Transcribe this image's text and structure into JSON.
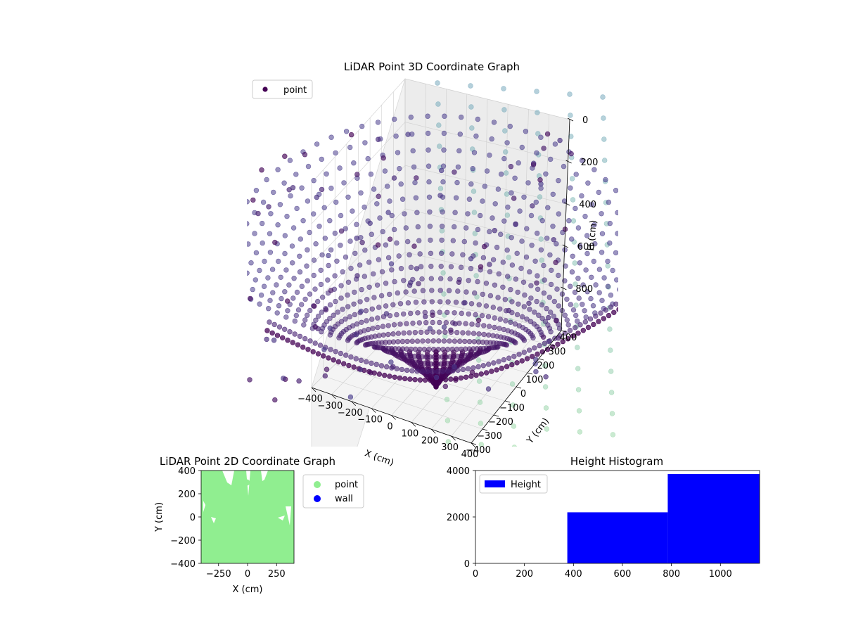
{
  "chart_data": [
    {
      "type": "scatter",
      "projection": "3d",
      "title": "LiDAR Point 3D Coordinate Graph",
      "xlabel": "X (cm)",
      "ylabel": "Y (cm)",
      "zlabel": "H (cm)",
      "x_ticks": [
        "−400",
        "−300",
        "−200",
        "−100",
        "0",
        "100",
        "200",
        "300",
        "400"
      ],
      "y_ticks": [
        "−400",
        "−300",
        "−200",
        "−100",
        "0",
        "100",
        "200",
        "300",
        "400"
      ],
      "z_ticks": [
        "0",
        "200",
        "400",
        "600",
        "800"
      ],
      "xlim": [
        -400,
        400
      ],
      "ylim": [
        -400,
        400
      ],
      "zlim": [
        0,
        1000
      ],
      "z_axis_inverted": true,
      "legend": {
        "placement": "upper-left",
        "entries": [
          "point"
        ]
      },
      "colormap": "viridis",
      "marker_color": "#440154",
      "grid": true,
      "shape": "bowl of radial scan lines converging at the sensor near the center; sparse outliers throughout"
    },
    {
      "type": "scatter",
      "title": "LiDAR Point 2D Coordinate Graph",
      "xlabel": "X (cm)",
      "ylabel": "Y (cm)",
      "x_ticks": [
        -250,
        0,
        250
      ],
      "y_ticks": [
        -400,
        -200,
        0,
        200,
        400
      ],
      "xlim": [
        -400,
        400
      ],
      "ylim": [
        -400,
        400
      ],
      "series": [
        {
          "name": "point",
          "color": "#90ee90"
        },
        {
          "name": "wall",
          "color": "#0000ff"
        }
      ],
      "legend": {
        "placement": "outside-right"
      },
      "grid": false
    },
    {
      "type": "bar",
      "title": "Height Histogram",
      "x_ticks": [
        0,
        200,
        400,
        600,
        800,
        1000
      ],
      "y_ticks": [
        0,
        2000,
        4000
      ],
      "xlim": [
        0,
        1160
      ],
      "ylim": [
        0,
        4000
      ],
      "bins": [
        {
          "from": 375,
          "to": 785,
          "count": 2200
        },
        {
          "from": 785,
          "to": 1160,
          "count": 3850
        }
      ],
      "series": [
        {
          "name": "Height",
          "color": "#0000ff"
        }
      ],
      "legend": {
        "placement": "upper-left"
      },
      "grid": false
    }
  ]
}
